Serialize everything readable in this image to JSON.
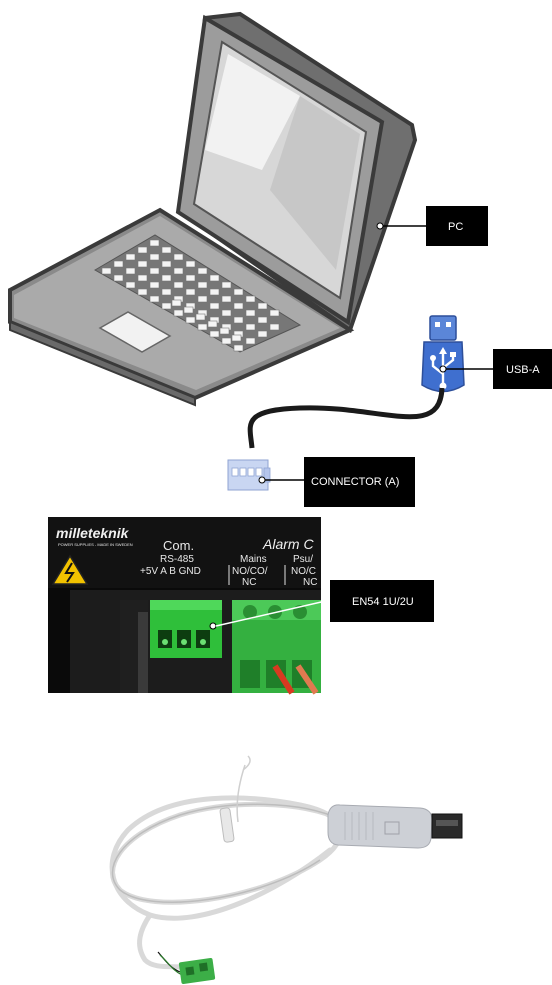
{
  "labels": {
    "pc": "PC",
    "usb": "USB-A",
    "connector": "CONNECTOR (A)",
    "en54": "EN54 1U/2U"
  },
  "panel": {
    "brand": "milleteknik",
    "tagline": "POWER SUPPLIES - MADE IN SWEDEN",
    "com_title": "Com.",
    "rs485": "RS-485",
    "pins": "+5V A B GND",
    "alarm_title": "Alarm C",
    "mains_line1": "Mains",
    "mains_line2": "NO/CO/",
    "mains_line3": "NC",
    "psu_line1": "Psu/",
    "psu_line2": "NO/C",
    "psu_line3": "NC"
  },
  "colors": {
    "callout_bg": "#000000",
    "callout_text": "#ffffff",
    "usb_blue": "#3f6fcf",
    "terminal_green": "#2fbf3a",
    "panel_bg": "#111111",
    "laptop_gray": "#8e8e8e"
  }
}
